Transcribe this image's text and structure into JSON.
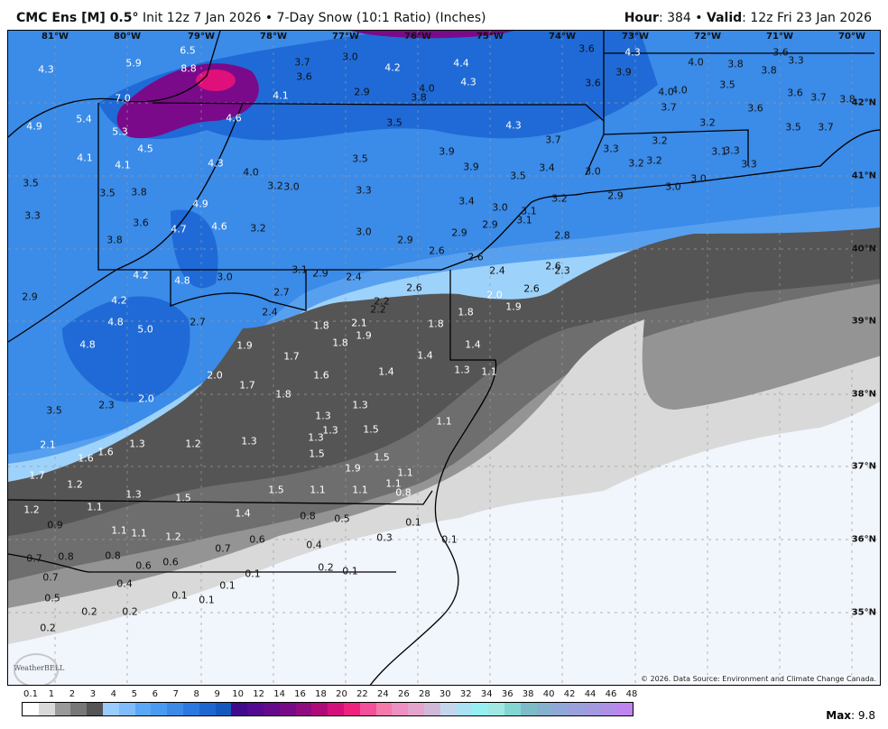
{
  "header": {
    "model": "CMC Ens [M] 0.5",
    "degree": "°",
    "init": "Init 12z 7 Jan 2026",
    "sep": "•",
    "product": "7-Day Snow (10:1 Ratio) (Inches)",
    "hour_label": "Hour",
    "hour": "384",
    "valid_label": "Valid",
    "valid": "12z Fri 23 Jan 2026"
  },
  "map": {
    "longitudes": [
      "81°W",
      "80°W",
      "79°W",
      "78°W",
      "77°W",
      "76°W",
      "75°W",
      "74°W",
      "73°W",
      "72°W",
      "71°W",
      "70°W"
    ],
    "latitudes": [
      "42°N",
      "41°N",
      "40°N",
      "39°N",
      "38°N",
      "37°N",
      "36°N",
      "35°N"
    ],
    "copyright": "© 2026. Data Source: Environment and Climate Change Canada.",
    "logo": "WeatherBELL",
    "colors": {
      "heavy": "#7a0a8a",
      "peak": "#e0107a",
      "blue_dark": "#1f6ad6",
      "blue": "#3b8be8",
      "blue_light": "#6fb2f6",
      "blue_pale": "#9dd2fb",
      "gray_dark": "#555555",
      "gray": "#6e6e6e",
      "gray_mid": "#949494",
      "gray_light": "#d9d9d9",
      "white": "#f1f5fc"
    },
    "values": [
      "6.5",
      "5.9",
      "8.8",
      "4.3",
      "7.0",
      "4.1",
      "5.4",
      "4.9",
      "4.6",
      "5.3",
      "4.5",
      "4.1",
      "4.1",
      "4.3",
      "4.0",
      "3.5",
      "3.5",
      "3.8",
      "3.2",
      "3.0",
      "3.3",
      "4.9",
      "3.6",
      "4.7",
      "4.6",
      "3.2",
      "3.8",
      "3.7",
      "3.0",
      "3.6",
      "4.2",
      "4.4",
      "4.3",
      "2.9",
      "4.0",
      "3.8",
      "3.5",
      "4.3",
      "3.7",
      "3.9",
      "3.5",
      "3.9",
      "3.4",
      "3.5",
      "3.3",
      "3.4",
      "3.0",
      "3.1",
      "3.1",
      "2.9",
      "3.2",
      "3.0",
      "2.9",
      "2.9",
      "2.8",
      "2.6",
      "3.6",
      "4.3",
      "3.9",
      "3.6",
      "4.0",
      "3.8",
      "3.6",
      "3.3",
      "3.8",
      "3.5",
      "4.0",
      "4.0",
      "3.7",
      "3.6",
      "3.7",
      "3.8",
      "3.6",
      "3.2",
      "3.5",
      "3.7",
      "3.2",
      "3.3",
      "3.1",
      "3.3",
      "3.2",
      "3.2",
      "3.3",
      "3.0",
      "3.0",
      "3.0",
      "2.9",
      "2.6",
      "2.4",
      "2.6",
      "2.3",
      "2.6",
      "2.0",
      "1.9",
      "3.0",
      "3.1",
      "2.9",
      "2.4",
      "2.7",
      "2.4",
      "4.2",
      "4.8",
      "2.9",
      "4.2",
      "4.8",
      "5.0",
      "2.7",
      "4.8",
      "1.9",
      "2.0",
      "1.7",
      "1.8",
      "1.7",
      "2.3",
      "2.0",
      "3.5",
      "2.1",
      "1.6",
      "1.6",
      "1.3",
      "1.2",
      "1.3",
      "1.7",
      "1.2",
      "1.3",
      "1.5",
      "1.2",
      "1.1",
      "0.9",
      "1.1",
      "1.1",
      "1.2",
      "0.7",
      "0.8",
      "0.8",
      "0.6",
      "0.6",
      "0.7",
      "0.6",
      "0.7",
      "0.4",
      "0.5",
      "0.1",
      "0.1",
      "0.1",
      "0.1",
      "0.2",
      "0.2",
      "0.2",
      "2.2",
      "2.6",
      "2.2",
      "1.8",
      "2.1",
      "1.8",
      "1.9",
      "1.8",
      "1.8",
      "1.4",
      "1.4",
      "1.6",
      "1.4",
      "1.3",
      "1.1",
      "1.3",
      "1.3",
      "1.3",
      "1.3",
      "1.5",
      "1.1",
      "1.5",
      "1.5",
      "1.9",
      "1.1",
      "1.1",
      "0.8",
      "1.1",
      "1.1",
      "1.5",
      "1.4",
      "0.8",
      "0.5",
      "0.4",
      "0.2",
      "0.1",
      "0.1",
      "0.3",
      "0.1"
    ]
  },
  "colorbar": {
    "labels": [
      "0.1",
      "1",
      "2",
      "3",
      "4",
      "5",
      "6",
      "7",
      "8",
      "9",
      "10",
      "12",
      "14",
      "16",
      "18",
      "20",
      "22",
      "24",
      "26",
      "28",
      "30",
      "32",
      "34",
      "36",
      "38",
      "40",
      "42",
      "44",
      "46",
      "48"
    ],
    "colors": [
      "#ffffff",
      "#d9d9d9",
      "#999999",
      "#777777",
      "#555555",
      "#99ccff",
      "#80bbfb",
      "#5aa8f6",
      "#479bf0",
      "#3b8ae6",
      "#2a78e2",
      "#1e66d0",
      "#1558bd",
      "#3f0a8c",
      "#520a90",
      "#650a8c",
      "#780a88",
      "#900a80",
      "#b00a78",
      "#d4107a",
      "#f0207e",
      "#f2509a",
      "#f47aaa",
      "#ee90c2",
      "#e4a4cc",
      "#d0b8d8",
      "#c4d6ee",
      "#a8e2f4",
      "#96f0f2",
      "#a0e8e4",
      "#84d6d2",
      "#7cbcc8",
      "#86b0d0",
      "#90a8d8",
      "#9aa0dc",
      "#a498e0",
      "#ae90e6",
      "#c084f0"
    ],
    "max_label": "Max",
    "max": "9.8"
  }
}
